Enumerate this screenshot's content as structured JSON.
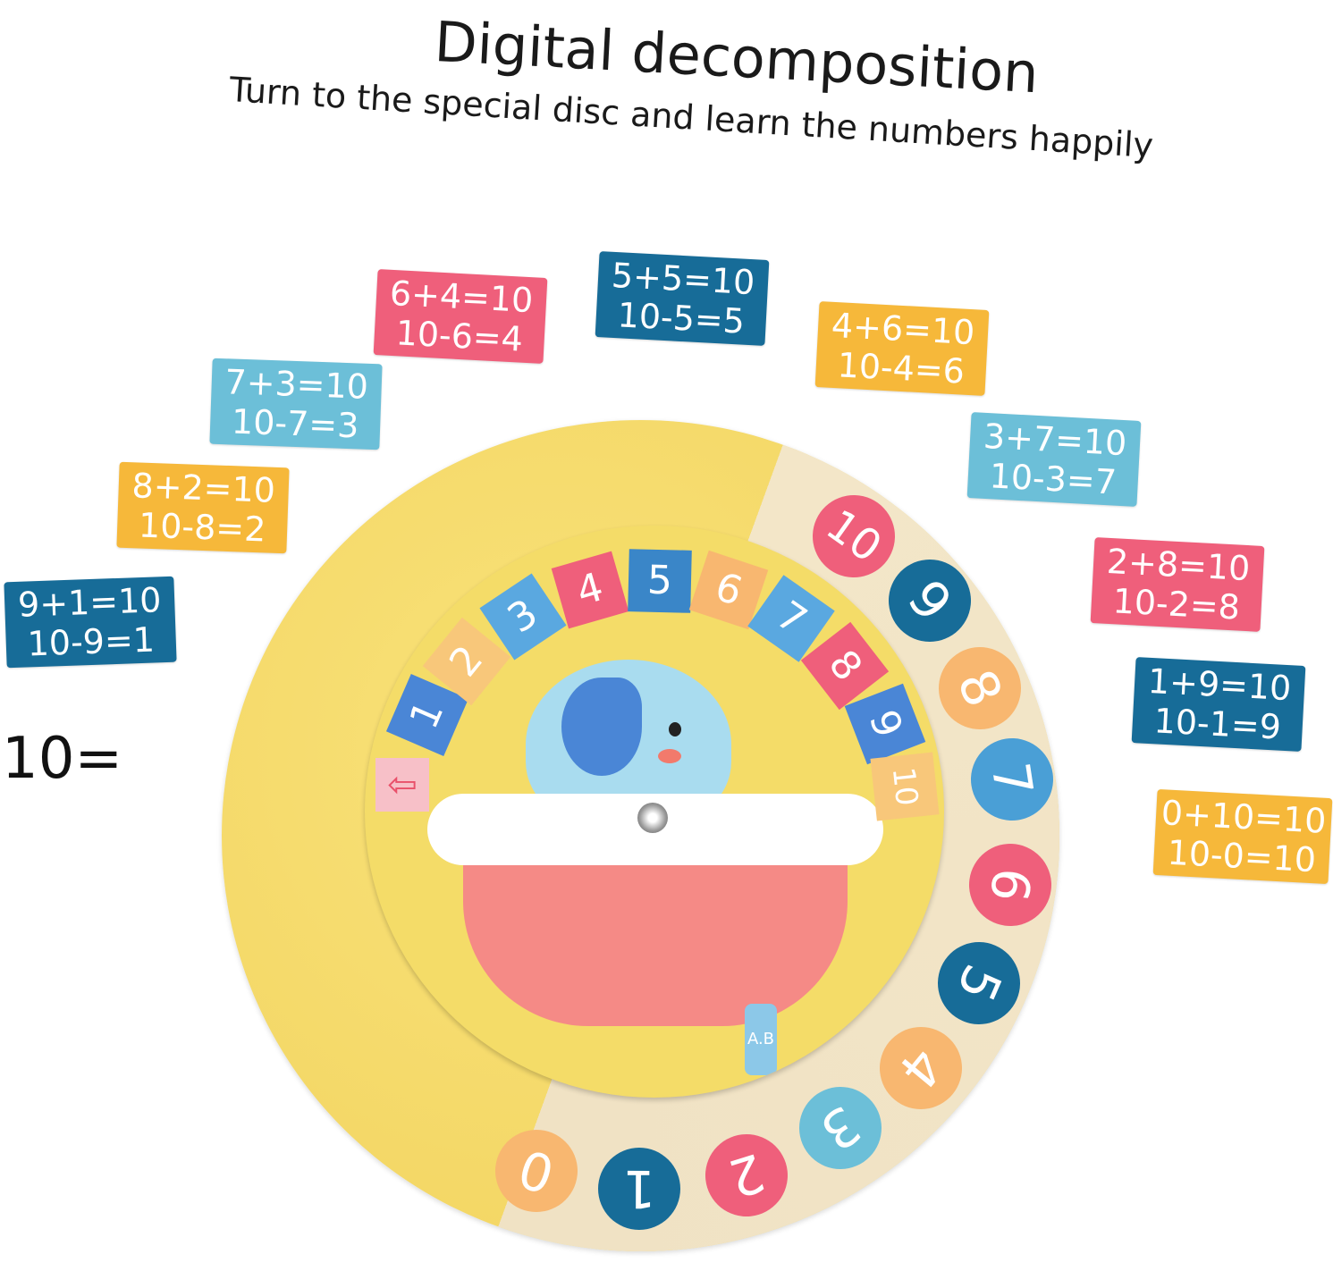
{
  "title": "Digital decomposition",
  "subtitle": "Turn to the special disc and learn the numbers happily",
  "prefix": "10=",
  "colors": {
    "pink": "#ef5f7b",
    "navy": "#176c98",
    "yellow": "#f6b83a",
    "lightblue": "#6cbfd8",
    "orange": "#f8b770"
  },
  "cards": [
    {
      "line1": "9+1=10",
      "line2": "10-9=1",
      "color": "#176c98"
    },
    {
      "line1": "8+2=10",
      "line2": "10-8=2",
      "color": "#f6b83a"
    },
    {
      "line1": "7+3=10",
      "line2": "10-7=3",
      "color": "#6cbfd8"
    },
    {
      "line1": "6+4=10",
      "line2": "10-6=4",
      "color": "#ef5f7b"
    },
    {
      "line1": "5+5=10",
      "line2": "10-5=5",
      "color": "#176c98"
    },
    {
      "line1": "4+6=10",
      "line2": "10-4=6",
      "color": "#f6b83a"
    },
    {
      "line1": "3+7=10",
      "line2": "10-3=7",
      "color": "#6cbfd8"
    },
    {
      "line1": "2+8=10",
      "line2": "10-2=8",
      "color": "#ef5f7b"
    },
    {
      "line1": "1+9=10",
      "line2": "10-1=9",
      "color": "#176c98"
    },
    {
      "line1": "0+10=10",
      "line2": "10-0=10",
      "color": "#f6b83a"
    }
  ],
  "outer_numbers": [
    {
      "n": "0",
      "color": "#f8b770"
    },
    {
      "n": "1",
      "color": "#176c98"
    },
    {
      "n": "2",
      "color": "#ef5f7b"
    },
    {
      "n": "3",
      "color": "#6cbfd8"
    },
    {
      "n": "4",
      "color": "#f8b770"
    },
    {
      "n": "5",
      "color": "#176c98"
    },
    {
      "n": "6",
      "color": "#ef5f7b"
    },
    {
      "n": "7",
      "color": "#4a9fd6"
    },
    {
      "n": "8",
      "color": "#f8b770"
    },
    {
      "n": "9",
      "color": "#176c98"
    },
    {
      "n": "10",
      "color": "#ef5f7b"
    }
  ],
  "inner_numbers": [
    {
      "n": "1",
      "color": "#4a86d6"
    },
    {
      "n": "2",
      "color": "#f8c77a"
    },
    {
      "n": "3",
      "color": "#5aa8e0"
    },
    {
      "n": "4",
      "color": "#ef5f7b"
    },
    {
      "n": "5",
      "color": "#3a86c8"
    },
    {
      "n": "6",
      "color": "#f8b770"
    },
    {
      "n": "7",
      "color": "#5aa8e0"
    },
    {
      "n": "8",
      "color": "#ef5f7b"
    },
    {
      "n": "9",
      "color": "#4a86d6"
    },
    {
      "n": "10",
      "color": "#f8c77a"
    }
  ],
  "bottle_label": "A.B"
}
